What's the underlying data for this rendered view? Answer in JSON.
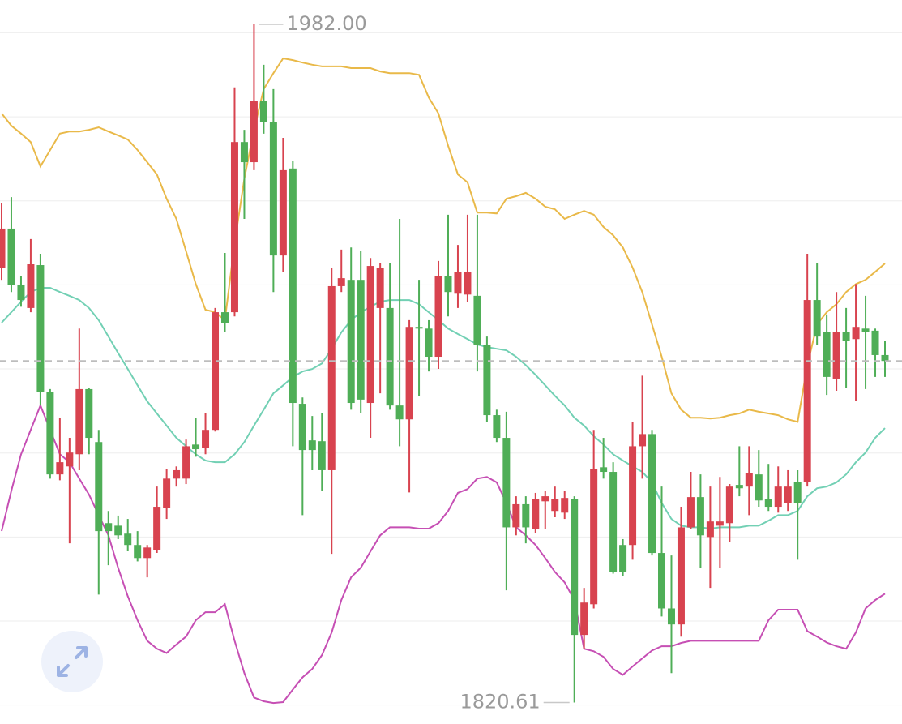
{
  "chart_data": {
    "type": "candlestick",
    "ylim": [
      1815.5,
      1987.8
    ],
    "gridlines": [
      1820,
      1840,
      1860,
      1880,
      1900,
      1920,
      1940,
      1960,
      1980
    ],
    "up_color": "#d8434f",
    "down_color": "#4fae57",
    "candles": [
      [
        1924.1,
        1939.5,
        1921.2,
        1933.4
      ],
      [
        1933.4,
        1940.9,
        1918.3,
        1919.9
      ],
      [
        1919.9,
        1922.2,
        1914.8,
        1916.4
      ],
      [
        1914.5,
        1930.9,
        1913.5,
        1924.9
      ],
      [
        1924.7,
        1927.4,
        1891.3,
        1894.6
      ],
      [
        1894.6,
        1895.2,
        1873.9,
        1874.9
      ],
      [
        1874.9,
        1888.4,
        1873.5,
        1877.8
      ],
      [
        1876.8,
        1883.6,
        1858.5,
        1880.1
      ],
      [
        1879.7,
        1909.6,
        1875.9,
        1895.2
      ],
      [
        1895.2,
        1895.5,
        1879.7,
        1883.6
      ],
      [
        1882.6,
        1885.5,
        1846.3,
        1861.4
      ],
      [
        1863.3,
        1866.2,
        1853.3,
        1861.4
      ],
      [
        1862.7,
        1865.1,
        1859.5,
        1860.4
      ],
      [
        1860.8,
        1864.3,
        1856.6,
        1858.1
      ],
      [
        1858.1,
        1861.4,
        1854.2,
        1855.0
      ],
      [
        1855.0,
        1858.1,
        1850.4,
        1857.5
      ],
      [
        1856.9,
        1872.0,
        1856.2,
        1867.2
      ],
      [
        1867.0,
        1876.2,
        1864.3,
        1873.9
      ],
      [
        1873.9,
        1876.8,
        1872.0,
        1875.9
      ],
      [
        1873.9,
        1883.2,
        1872.6,
        1881.6
      ],
      [
        1882.0,
        1888.4,
        1879.1,
        1880.9
      ],
      [
        1881.1,
        1889.4,
        1879.7,
        1885.5
      ],
      [
        1885.5,
        1914.5,
        1885.1,
        1913.5
      ],
      [
        1913.5,
        1927.6,
        1908.7,
        1911.0
      ],
      [
        1913.5,
        1967.0,
        1912.5,
        1954.0
      ],
      [
        1954.0,
        1956.9,
        1935.7,
        1949.2
      ],
      [
        1949.2,
        1982.0,
        1947.3,
        1963.7
      ],
      [
        1963.7,
        1972.4,
        1956.0,
        1958.8
      ],
      [
        1958.8,
        1966.6,
        1918.3,
        1927.0
      ],
      [
        1927.0,
        1955.0,
        1923.1,
        1947.3
      ],
      [
        1947.7,
        1949.6,
        1881.6,
        1891.9
      ],
      [
        1891.7,
        1893.2,
        1865.2,
        1880.7
      ],
      [
        1883.0,
        1888.8,
        1875.9,
        1880.7
      ],
      [
        1882.8,
        1889.4,
        1871.0,
        1875.9
      ],
      [
        1875.9,
        1924.1,
        1856.0,
        1919.7
      ],
      [
        1919.7,
        1928.4,
        1918.3,
        1921.6
      ],
      [
        1921.2,
        1928.9,
        1890.3,
        1891.9
      ],
      [
        1921.2,
        1928.0,
        1889.4,
        1892.7
      ],
      [
        1891.9,
        1926.4,
        1883.6,
        1924.5
      ],
      [
        1914.5,
        1925.1,
        1894.2,
        1924.1
      ],
      [
        1914.5,
        1925.1,
        1890.3,
        1891.3
      ],
      [
        1891.3,
        1935.7,
        1881.6,
        1888.0
      ],
      [
        1888.0,
        1911.6,
        1870.6,
        1910.0
      ],
      [
        1910.0,
        1921.2,
        1893.6,
        1909.6
      ],
      [
        1909.6,
        1911.6,
        1899.4,
        1902.9
      ],
      [
        1902.9,
        1925.7,
        1900.0,
        1922.2
      ],
      [
        1922.2,
        1936.7,
        1912.5,
        1918.3
      ],
      [
        1917.9,
        1929.5,
        1914.5,
        1923.1
      ],
      [
        1917.7,
        1936.7,
        1916.0,
        1923.1
      ],
      [
        1917.4,
        1936.7,
        1899.4,
        1905.8
      ],
      [
        1905.8,
        1907.7,
        1887.4,
        1889.0
      ],
      [
        1889.0,
        1890.3,
        1882.6,
        1883.6
      ],
      [
        1883.6,
        1889.8,
        1847.3,
        1862.3
      ],
      [
        1862.3,
        1869.7,
        1860.4,
        1867.8
      ],
      [
        1867.8,
        1869.7,
        1858.5,
        1862.3
      ],
      [
        1862.0,
        1870.5,
        1861.0,
        1869.1
      ],
      [
        1868.5,
        1871.0,
        1862.0,
        1869.7
      ],
      [
        1866.2,
        1872.0,
        1864.7,
        1869.1
      ],
      [
        1865.8,
        1871.0,
        1864.3,
        1869.3
      ],
      [
        1869.1,
        1869.7,
        1820.61,
        1836.7
      ],
      [
        1836.7,
        1847.9,
        1833.4,
        1844.4
      ],
      [
        1844.0,
        1885.5,
        1843.0,
        1876.2
      ],
      [
        1876.6,
        1883.6,
        1873.9,
        1875.5
      ],
      [
        1875.5,
        1877.8,
        1851.3,
        1851.7
      ],
      [
        1858.1,
        1859.5,
        1850.8,
        1851.7
      ],
      [
        1858.1,
        1887.4,
        1854.6,
        1881.6
      ],
      [
        1881.6,
        1898.4,
        1873.9,
        1884.5
      ],
      [
        1884.5,
        1885.5,
        1855.6,
        1856.2
      ],
      [
        1856.2,
        1872.0,
        1841.1,
        1843.0
      ],
      [
        1843.0,
        1855.6,
        1827.6,
        1839.2
      ],
      [
        1839.2,
        1867.2,
        1836.3,
        1862.3
      ],
      [
        1862.3,
        1875.5,
        1862.0,
        1869.5
      ],
      [
        1869.5,
        1874.9,
        1852.7,
        1860.4
      ],
      [
        1860.0,
        1872.0,
        1847.9,
        1863.7
      ],
      [
        1862.7,
        1874.3,
        1852.7,
        1863.7
      ],
      [
        1863.3,
        1872.6,
        1858.9,
        1872.0
      ],
      [
        1872.4,
        1881.6,
        1869.7,
        1871.6
      ],
      [
        1872.0,
        1881.6,
        1865.2,
        1875.3
      ],
      [
        1874.9,
        1880.7,
        1867.2,
        1868.7
      ],
      [
        1869.1,
        1877.4,
        1866.2,
        1867.2
      ],
      [
        1867.2,
        1876.8,
        1865.8,
        1872.0
      ],
      [
        1868.1,
        1875.9,
        1866.2,
        1872.0
      ],
      [
        1873.0,
        1875.9,
        1854.6,
        1868.1
      ],
      [
        1873.0,
        1927.4,
        1872.0,
        1916.4
      ],
      [
        1916.4,
        1925.1,
        1905.8,
        1907.7
      ],
      [
        1908.7,
        1912.9,
        1893.8,
        1898.1
      ],
      [
        1897.7,
        1918.3,
        1894.8,
        1908.7
      ],
      [
        1908.7,
        1914.5,
        1895.5,
        1906.7
      ],
      [
        1907.1,
        1920.2,
        1892.3,
        1910.0
      ],
      [
        1909.6,
        1917.4,
        1895.2,
        1908.7
      ],
      [
        1909.1,
        1909.6,
        1898.1,
        1903.3
      ],
      [
        1903.3,
        1906.7,
        1898.1,
        1901.9
      ]
    ],
    "bands": [
      {
        "color": "#e9b949",
        "values": [
          1960.8,
          1957.9,
          1956.0,
          1954.0,
          1948.2,
          1952.1,
          1956.0,
          1956.5,
          1956.5,
          1956.9,
          1957.5,
          1956.5,
          1955.6,
          1954.6,
          1952.1,
          1949.2,
          1946.3,
          1940.5,
          1935.7,
          1928.0,
          1920.2,
          1914.1,
          1913.5,
          1911.6,
          1929.9,
          1945.3,
          1956.9,
          1966.6,
          1970.4,
          1973.9,
          1973.5,
          1972.9,
          1972.4,
          1972.0,
          1972.0,
          1972.0,
          1971.6,
          1971.6,
          1971.6,
          1970.8,
          1970.4,
          1970.4,
          1970.4,
          1970.0,
          1964.6,
          1960.8,
          1953.1,
          1946.3,
          1944.4,
          1937.2,
          1937.2,
          1937.0,
          1940.5,
          1941.1,
          1941.9,
          1940.5,
          1938.6,
          1938.0,
          1935.7,
          1936.7,
          1937.6,
          1936.7,
          1933.8,
          1931.8,
          1928.9,
          1924.1,
          1918.3,
          1910.6,
          1902.9,
          1894.2,
          1890.3,
          1888.4,
          1888.4,
          1888.2,
          1888.4,
          1889.0,
          1889.4,
          1890.3,
          1889.8,
          1889.4,
          1889.0,
          1888.0,
          1887.4,
          1900.9,
          1910.6,
          1913.5,
          1915.4,
          1918.3,
          1920.2,
          1921.2,
          1923.1,
          1925.1
        ]
      },
      {
        "color": "#72d0b4",
        "values": [
          1911.0,
          1913.5,
          1916.0,
          1918.3,
          1919.3,
          1919.3,
          1918.3,
          1917.4,
          1916.4,
          1914.5,
          1911.6,
          1907.7,
          1903.8,
          1900.0,
          1896.1,
          1892.3,
          1889.4,
          1886.5,
          1883.6,
          1881.6,
          1879.7,
          1878.2,
          1877.8,
          1877.8,
          1879.7,
          1882.6,
          1886.5,
          1890.3,
          1894.2,
          1896.1,
          1898.1,
          1899.4,
          1900.0,
          1901.3,
          1904.8,
          1908.7,
          1911.6,
          1913.5,
          1914.8,
          1916.0,
          1916.4,
          1916.4,
          1916.4,
          1915.4,
          1913.5,
          1911.6,
          1909.6,
          1908.3,
          1907.1,
          1905.8,
          1905.2,
          1904.8,
          1904.4,
          1902.9,
          1900.9,
          1898.6,
          1896.1,
          1893.6,
          1891.3,
          1888.4,
          1886.5,
          1884.0,
          1882.0,
          1879.7,
          1878.2,
          1876.8,
          1875.5,
          1873.0,
          1868.1,
          1864.3,
          1862.7,
          1862.3,
          1862.3,
          1862.0,
          1862.3,
          1862.3,
          1862.3,
          1862.7,
          1862.7,
          1863.9,
          1865.2,
          1865.2,
          1866.2,
          1869.7,
          1871.6,
          1872.0,
          1873.0,
          1874.9,
          1877.8,
          1880.1,
          1883.6,
          1885.9
        ]
      },
      {
        "color": "#c64fb4",
        "values": [
          1861.4,
          1871.0,
          1879.7,
          1885.5,
          1891.3,
          1885.5,
          1879.7,
          1877.8,
          1873.9,
          1870.1,
          1865.2,
          1860.4,
          1852.7,
          1845.9,
          1840.2,
          1835.3,
          1833.4,
          1832.4,
          1834.4,
          1836.3,
          1840.2,
          1842.1,
          1842.1,
          1844.0,
          1835.3,
          1827.6,
          1821.8,
          1820.9,
          1820.5,
          1820.7,
          1823.7,
          1826.6,
          1828.6,
          1831.9,
          1837.3,
          1845.0,
          1850.4,
          1852.7,
          1856.6,
          1860.4,
          1862.3,
          1862.3,
          1862.3,
          1862.0,
          1862.0,
          1863.3,
          1866.2,
          1870.5,
          1871.4,
          1873.9,
          1874.3,
          1873.0,
          1868.1,
          1862.3,
          1860.4,
          1858.1,
          1855.0,
          1851.7,
          1849.2,
          1845.0,
          1833.4,
          1832.8,
          1831.5,
          1828.6,
          1827.2,
          1829.2,
          1831.1,
          1833.0,
          1834.0,
          1834.0,
          1834.8,
          1835.3,
          1835.3,
          1835.3,
          1835.3,
          1835.3,
          1835.3,
          1835.3,
          1835.3,
          1840.2,
          1842.7,
          1842.7,
          1842.7,
          1837.6,
          1836.3,
          1834.9,
          1834.0,
          1833.4,
          1837.3,
          1843.0,
          1845.0,
          1846.5
        ]
      }
    ],
    "annotations": [
      {
        "value": 1982,
        "label": "1982.00",
        "side": "high"
      },
      {
        "value": 1820.61,
        "label": "1820.61",
        "side": "low"
      }
    ]
  }
}
